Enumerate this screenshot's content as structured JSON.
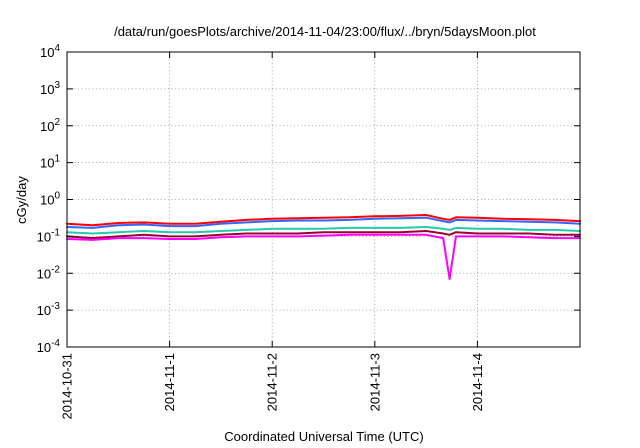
{
  "chart_data": {
    "type": "line",
    "title": "/data/run/goesPlots/archive/2014-11-04/23:00/flux/../bryn/5daysMoon.plot",
    "xlabel": "Coordinated Universal Time (UTC)",
    "ylabel": "cGy/day",
    "xlim": [
      "2014-10-31",
      "2014-11-05"
    ],
    "ylim": [
      0.0001,
      10000
    ],
    "yscale": "log",
    "grid": true,
    "legend": "none",
    "x_ticks": [
      "2014-10-31",
      "2014-11-1",
      "2014-11-2",
      "2014-11-3",
      "2014-11-4"
    ],
    "y_ticks": [
      {
        "base": "10",
        "exp": "-4"
      },
      {
        "base": "10",
        "exp": "-3"
      },
      {
        "base": "10",
        "exp": "-2"
      },
      {
        "base": "10",
        "exp": "-1"
      },
      {
        "base": "10",
        "exp": "0"
      },
      {
        "base": "10",
        "exp": "1"
      },
      {
        "base": "10",
        "exp": "2"
      },
      {
        "base": "10",
        "exp": "3"
      },
      {
        "base": "10",
        "exp": "4"
      }
    ],
    "x": [
      "2014-10-31 00:00",
      "2014-10-31 06:00",
      "2014-10-31 12:00",
      "2014-10-31 18:00",
      "2014-11-01 00:00",
      "2014-11-01 06:00",
      "2014-11-01 12:00",
      "2014-11-01 18:00",
      "2014-11-02 00:00",
      "2014-11-02 06:00",
      "2014-11-02 12:00",
      "2014-11-02 18:00",
      "2014-11-03 00:00",
      "2014-11-03 06:00",
      "2014-11-03 12:00",
      "2014-11-03 16:00",
      "2014-11-03 17:30",
      "2014-11-03 19:00",
      "2014-11-04 00:00",
      "2014-11-04 06:00",
      "2014-11-04 12:00",
      "2014-11-04 18:00",
      "2014-11-05 00:00"
    ],
    "series": [
      {
        "color": "#ff0000",
        "values": [
          0.22,
          0.2,
          0.23,
          0.24,
          0.22,
          0.22,
          0.25,
          0.28,
          0.3,
          0.31,
          0.32,
          0.33,
          0.35,
          0.36,
          0.38,
          0.3,
          0.28,
          0.33,
          0.32,
          0.3,
          0.29,
          0.28,
          0.26
        ]
      },
      {
        "color": "#3366ff",
        "values": [
          0.18,
          0.17,
          0.2,
          0.21,
          0.19,
          0.19,
          0.22,
          0.24,
          0.26,
          0.27,
          0.27,
          0.28,
          0.3,
          0.31,
          0.32,
          0.26,
          0.24,
          0.28,
          0.27,
          0.26,
          0.25,
          0.24,
          0.22
        ]
      },
      {
        "color": "#22ccaa",
        "values": [
          0.13,
          0.12,
          0.13,
          0.14,
          0.13,
          0.13,
          0.14,
          0.15,
          0.16,
          0.16,
          0.16,
          0.17,
          0.17,
          0.17,
          0.18,
          0.16,
          0.15,
          0.17,
          0.16,
          0.16,
          0.15,
          0.15,
          0.14
        ]
      },
      {
        "color": "#990033",
        "values": [
          0.1,
          0.09,
          0.1,
          0.11,
          0.1,
          0.1,
          0.11,
          0.12,
          0.12,
          0.12,
          0.13,
          0.13,
          0.13,
          0.13,
          0.14,
          0.12,
          0.11,
          0.13,
          0.12,
          0.12,
          0.12,
          0.11,
          0.11
        ]
      },
      {
        "color": "#ff00ff",
        "values": [
          0.085,
          0.08,
          0.09,
          0.09,
          0.085,
          0.085,
          0.095,
          0.1,
          0.1,
          0.1,
          0.105,
          0.11,
          0.11,
          0.11,
          0.11,
          0.09,
          0.007,
          0.1,
          0.1,
          0.1,
          0.095,
          0.09,
          0.09
        ]
      }
    ]
  }
}
